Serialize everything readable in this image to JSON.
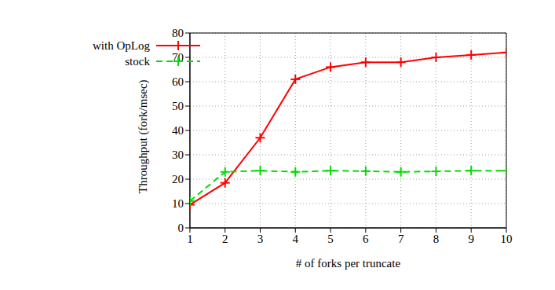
{
  "chart_data": {
    "type": "line",
    "xlabel": "# of forks per truncate",
    "ylabel": "Throughput (fork/msec)",
    "x": [
      1,
      2,
      3,
      4,
      5,
      6,
      7,
      8,
      9,
      10
    ],
    "series": [
      {
        "name": "with OpLog",
        "color": "#ff0000",
        "line_style": "solid",
        "marker": "plus",
        "values": [
          9.5,
          18.5,
          37,
          61,
          66,
          68,
          68,
          70,
          71,
          72
        ]
      },
      {
        "name": "stock",
        "color": "#00dd00",
        "line_style": "dashed",
        "marker": "plus",
        "values": [
          11,
          23,
          23.5,
          23,
          23.5,
          23.3,
          23,
          23.2,
          23.5,
          23.5
        ]
      }
    ],
    "xlim": [
      1,
      10
    ],
    "ylim": [
      0,
      80
    ],
    "xticks": [
      1,
      2,
      3,
      4,
      5,
      6,
      7,
      8,
      9,
      10
    ],
    "yticks": [
      0,
      10,
      20,
      30,
      40,
      50,
      60,
      70,
      80
    ],
    "grid": true,
    "legend": "upper left"
  }
}
